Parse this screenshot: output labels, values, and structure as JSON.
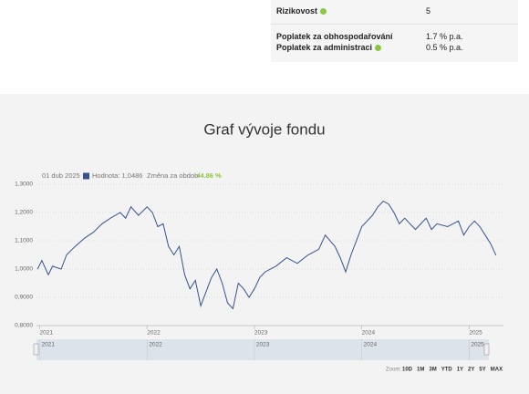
{
  "info": {
    "rows": [
      [
        "Rizikovost",
        "5"
      ],
      [
        "Poplatek za obhospodařování",
        "1.7 % p.a."
      ],
      [
        "Poplatek za administraci",
        "0.5 % p.a."
      ]
    ]
  },
  "chart_data": {
    "type": "line",
    "title": "Graf vývoje fondu",
    "header": {
      "date": "01 dub 2025",
      "value": "Hodnota: 1,0486",
      "change_label": "Změna za období",
      "change": "+4.86 %"
    },
    "x": [
      2020.98,
      2021.02,
      2021.08,
      2021.12,
      2021.2,
      2021.25,
      2021.33,
      2021.42,
      2021.5,
      2021.58,
      2021.66,
      2021.75,
      2021.8,
      2021.85,
      2021.92,
      2022.0,
      2022.05,
      2022.1,
      2022.15,
      2022.2,
      2022.25,
      2022.3,
      2022.35,
      2022.4,
      2022.45,
      2022.5,
      2022.55,
      2022.6,
      2022.65,
      2022.7,
      2022.75,
      2022.8,
      2022.85,
      2022.9,
      2022.95,
      2023.0,
      2023.05,
      2023.1,
      2023.2,
      2023.3,
      2023.4,
      2023.5,
      2023.6,
      2023.66,
      2023.75,
      2023.8,
      2023.85,
      2023.9,
      2023.95,
      2024.0,
      2024.1,
      2024.15,
      2024.2,
      2024.25,
      2024.3,
      2024.35,
      2024.4,
      2024.5,
      2024.55,
      2024.6,
      2024.65,
      2024.7,
      2024.8,
      2024.9,
      2024.95,
      2025.0,
      2025.05,
      2025.1,
      2025.15,
      2025.2,
      2025.25
    ],
    "series": [
      {
        "name": "Hodnota",
        "color": "#34538f",
        "values": [
          1.0,
          1.03,
          0.98,
          1.01,
          1.0,
          1.05,
          1.08,
          1.11,
          1.13,
          1.16,
          1.18,
          1.2,
          1.18,
          1.22,
          1.19,
          1.22,
          1.2,
          1.15,
          1.16,
          1.08,
          1.05,
          1.08,
          0.98,
          0.93,
          0.96,
          0.87,
          0.92,
          0.97,
          1.0,
          0.95,
          0.88,
          0.86,
          0.95,
          0.93,
          0.9,
          0.93,
          0.97,
          0.99,
          1.01,
          1.04,
          1.02,
          1.05,
          1.07,
          1.12,
          1.08,
          1.04,
          0.99,
          1.05,
          1.1,
          1.15,
          1.19,
          1.22,
          1.24,
          1.23,
          1.2,
          1.16,
          1.18,
          1.14,
          1.16,
          1.18,
          1.14,
          1.16,
          1.15,
          1.17,
          1.12,
          1.15,
          1.17,
          1.15,
          1.12,
          1.09,
          1.0486
        ]
      }
    ],
    "xlim": [
      2020.97,
      2025.32
    ],
    "xticks": [
      2021,
      2022,
      2023,
      2024,
      2025
    ],
    "ylim": [
      0.8,
      1.3
    ],
    "yticks": [
      {
        "value": 0.8,
        "label": "0,8000"
      },
      {
        "value": 0.9,
        "label": "0,9000"
      },
      {
        "value": 1.0,
        "label": "1,0000"
      },
      {
        "value": 1.1,
        "label": "1,1000"
      },
      {
        "value": 1.2,
        "label": "1,2000"
      },
      {
        "value": 1.3,
        "label": "1,3000"
      }
    ],
    "grid": true,
    "zoom_label": "Zoom:",
    "zoom_buttons": [
      "10D",
      "1M",
      "3M",
      "YTD",
      "1Y",
      "2Y",
      "5Y",
      "MAX"
    ]
  }
}
